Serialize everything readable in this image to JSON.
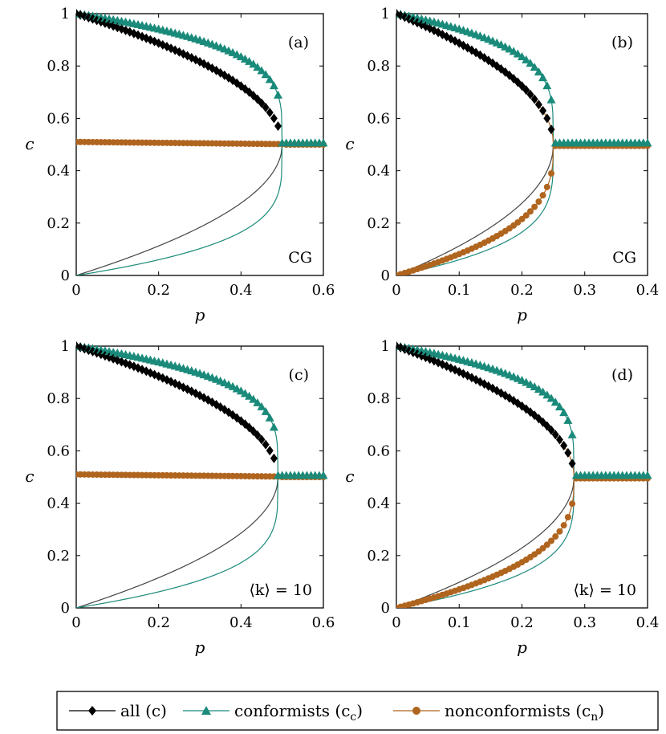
{
  "colors": {
    "all": "#000000",
    "conformists": "#1a8a7a",
    "nonconformists": "#b0651f",
    "fit_all": "#444444"
  },
  "legend": {
    "all_label": "all (c)",
    "conformists_label": "conformists (c",
    "conformists_sub": "c",
    "nonconformists_label": "nonconformists (c",
    "nonconformists_sub": "n",
    "close_paren": ")"
  },
  "chart_data": [
    {
      "type": "line",
      "panel": "(a)",
      "annotation": "CG",
      "xlabel": "p",
      "ylabel": "c",
      "xlim": [
        0,
        0.6
      ],
      "ylim": [
        0,
        1
      ],
      "xticks": [
        "0",
        "0.2",
        "0.4",
        "0.6"
      ],
      "yticks": [
        "0",
        "0.2",
        "0.4",
        "0.6",
        "0.8",
        "1"
      ],
      "pc": 0.5,
      "nonconformist_markers_mode": "flat",
      "nonconformist_fit": "none"
    },
    {
      "type": "line",
      "panel": "(b)",
      "annotation": "CG",
      "xlabel": "p",
      "ylabel": "c",
      "xlim": [
        0,
        0.4
      ],
      "ylim": [
        0,
        1
      ],
      "xticks": [
        "0",
        "0.1",
        "0.2",
        "0.3",
        "0.4"
      ],
      "yticks": [
        "0",
        "0.2",
        "0.4",
        "0.6",
        "0.8",
        "1"
      ],
      "pc": 0.25,
      "nonconformist_markers_mode": "curve",
      "nonconformist_fit": "curve"
    },
    {
      "type": "line",
      "panel": "(c)",
      "annotation": "⟨k⟩ = 10",
      "xlabel": "p",
      "ylabel": "c",
      "xlim": [
        0,
        0.6
      ],
      "ylim": [
        0,
        1
      ],
      "xticks": [
        "0",
        "0.2",
        "0.4",
        "0.6"
      ],
      "yticks": [
        "0",
        "0.2",
        "0.4",
        "0.6",
        "0.8",
        "1"
      ],
      "pc": 0.49,
      "nonconformist_markers_mode": "flat",
      "nonconformist_fit": "none"
    },
    {
      "type": "line",
      "panel": "(d)",
      "annotation": "⟨k⟩ = 10",
      "xlabel": "p",
      "ylabel": "c",
      "xlim": [
        0,
        0.4
      ],
      "ylim": [
        0,
        1
      ],
      "xticks": [
        "0",
        "0.1",
        "0.2",
        "0.3",
        "0.4"
      ],
      "yticks": [
        "0",
        "0.2",
        "0.4",
        "0.6",
        "0.8",
        "1"
      ],
      "pc": 0.283,
      "nonconformist_markers_mode": "curve",
      "nonconformist_fit": "curve"
    }
  ]
}
